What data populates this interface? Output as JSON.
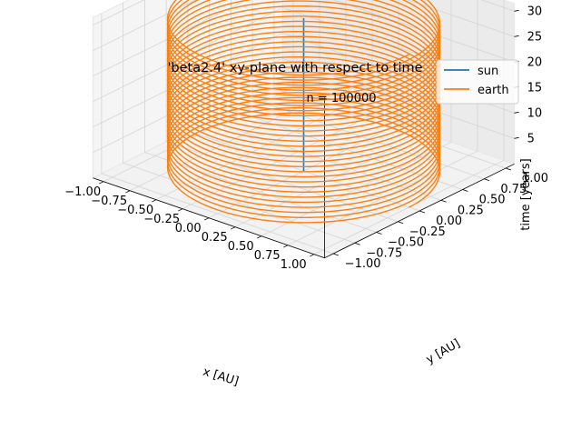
{
  "chart_data": {
    "type": "line",
    "projection": "3d",
    "title": "'beta2.4' xy-plane with respect to time",
    "annotation": "n = 100000",
    "xlabel": "x [AU]",
    "ylabel": "y [AU]",
    "zlabel": "time [years]",
    "xlim": [
      -1.1,
      1.1
    ],
    "ylim": [
      -1.1,
      1.1
    ],
    "zlim": [
      0,
      31.5
    ],
    "x_ticks": [
      "−1.00",
      "−0.75",
      "−0.50",
      "−0.25",
      "0.00",
      "0.25",
      "0.50",
      "0.75",
      "1.00"
    ],
    "y_ticks": [
      "−1.00",
      "−0.75",
      "−0.50",
      "−0.25",
      "0.00",
      "0.25",
      "0.50",
      "0.75",
      "1.00"
    ],
    "z_ticks": [
      "5",
      "10",
      "15",
      "20",
      "25",
      "30"
    ],
    "grid": true,
    "legend_position": "top-right",
    "series": [
      {
        "name": "sun",
        "color": "#1f77b4",
        "kind": "vertical_line",
        "x": 0,
        "y": 0,
        "t_range": [
          0,
          30
        ]
      },
      {
        "name": "earth",
        "color": "#ff7f0e",
        "kind": "helix",
        "radius": 1.0,
        "period_years": 1.0,
        "t_range": [
          0,
          30
        ]
      }
    ]
  }
}
